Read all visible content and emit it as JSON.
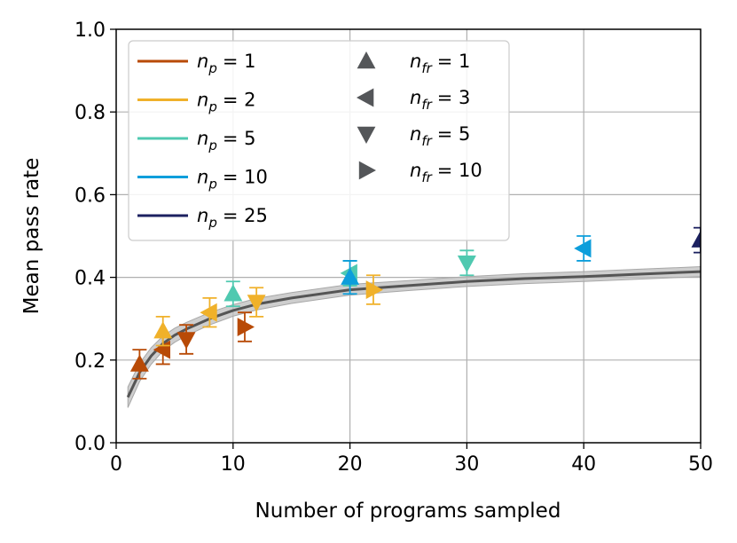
{
  "chart_data": {
    "type": "scatter",
    "title": "",
    "xlabel": "Number of programs sampled",
    "ylabel": "Mean pass rate",
    "xlim": [
      0,
      50
    ],
    "ylim": [
      0.0,
      1.0
    ],
    "xticks": [
      "0",
      "10",
      "20",
      "30",
      "40",
      "50"
    ],
    "xtick_values": [
      0,
      10,
      20,
      30,
      40,
      50
    ],
    "yticks": [
      "0.0",
      "0.2",
      "0.4",
      "0.6",
      "0.8",
      "1.0"
    ],
    "ytick_values": [
      0.0,
      0.2,
      0.4,
      0.6,
      0.8,
      1.0
    ],
    "grid": true,
    "legend_position": "top-left",
    "legend_np": [
      {
        "label": "n",
        "sub": "p",
        "value": "= 1",
        "color": "#b84a06"
      },
      {
        "label": "n",
        "sub": "p",
        "value": "= 2",
        "color": "#f0b12a"
      },
      {
        "label": "n",
        "sub": "p",
        "value": "= 5",
        "color": "#4fc9b0"
      },
      {
        "label": "n",
        "sub": "p",
        "value": "= 10",
        "color": "#0c9edb"
      },
      {
        "label": "n",
        "sub": "p",
        "value": "= 25",
        "color": "#1c2160"
      }
    ],
    "legend_nfr": [
      {
        "label": "n",
        "sub": "fr",
        "value": "= 1",
        "marker": "up"
      },
      {
        "label": "n",
        "sub": "fr",
        "value": "= 3",
        "marker": "left"
      },
      {
        "label": "n",
        "sub": "fr",
        "value": "= 5",
        "marker": "down"
      },
      {
        "label": "n",
        "sub": "fr",
        "value": "= 10",
        "marker": "right"
      }
    ],
    "marker_legend_color": "#545659",
    "baseline": {
      "color": "#555555",
      "band_color": "#bdbdbd",
      "x": [
        1,
        2,
        3,
        4,
        5,
        6,
        8,
        10,
        12,
        15,
        20,
        25,
        30,
        35,
        40,
        45,
        50
      ],
      "y": [
        0.11,
        0.17,
        0.21,
        0.24,
        0.26,
        0.275,
        0.3,
        0.32,
        0.335,
        0.35,
        0.37,
        0.38,
        0.39,
        0.397,
        0.402,
        0.408,
        0.414
      ],
      "band": [
        0.025,
        0.022,
        0.02,
        0.018,
        0.017,
        0.016,
        0.015,
        0.014,
        0.014,
        0.013,
        0.013,
        0.012,
        0.012,
        0.012,
        0.012,
        0.012,
        0.012
      ]
    },
    "points": [
      {
        "x": 2,
        "y": 0.19,
        "err": 0.035,
        "np": 1,
        "nfr": 1,
        "marker": "up",
        "color": "#b84a06"
      },
      {
        "x": 4,
        "y": 0.225,
        "err": 0.035,
        "np": 1,
        "nfr": 3,
        "marker": "left",
        "color": "#b84a06"
      },
      {
        "x": 6,
        "y": 0.25,
        "err": 0.035,
        "np": 1,
        "nfr": 5,
        "marker": "down",
        "color": "#b84a06"
      },
      {
        "x": 11,
        "y": 0.28,
        "err": 0.035,
        "np": 1,
        "nfr": 10,
        "marker": "right",
        "color": "#b84a06"
      },
      {
        "x": 4,
        "y": 0.27,
        "err": 0.035,
        "np": 2,
        "nfr": 1,
        "marker": "up",
        "color": "#f0b12a"
      },
      {
        "x": 8,
        "y": 0.315,
        "err": 0.035,
        "np": 2,
        "nfr": 3,
        "marker": "left",
        "color": "#f0b12a"
      },
      {
        "x": 12,
        "y": 0.34,
        "err": 0.035,
        "np": 2,
        "nfr": 5,
        "marker": "down",
        "color": "#f0b12a"
      },
      {
        "x": 22,
        "y": 0.37,
        "err": 0.035,
        "np": 2,
        "nfr": 10,
        "marker": "right",
        "color": "#f0b12a"
      },
      {
        "x": 10,
        "y": 0.36,
        "err": 0.03,
        "np": 5,
        "nfr": 1,
        "marker": "up",
        "color": "#4fc9b0"
      },
      {
        "x": 20,
        "y": 0.41,
        "err": 0.03,
        "np": 5,
        "nfr": 3,
        "marker": "left",
        "color": "#4fc9b0"
      },
      {
        "x": 30,
        "y": 0.435,
        "err": 0.03,
        "np": 5,
        "nfr": 5,
        "marker": "down",
        "color": "#4fc9b0"
      },
      {
        "x": 20,
        "y": 0.4,
        "err": 0.04,
        "np": 10,
        "nfr": 1,
        "marker": "up",
        "color": "#0c9edb"
      },
      {
        "x": 40,
        "y": 0.47,
        "err": 0.03,
        "np": 10,
        "nfr": 3,
        "marker": "left",
        "color": "#0c9edb"
      },
      {
        "x": 50,
        "y": 0.49,
        "err": 0.03,
        "np": 25,
        "nfr": 1,
        "marker": "up",
        "color": "#1c2160"
      }
    ]
  }
}
